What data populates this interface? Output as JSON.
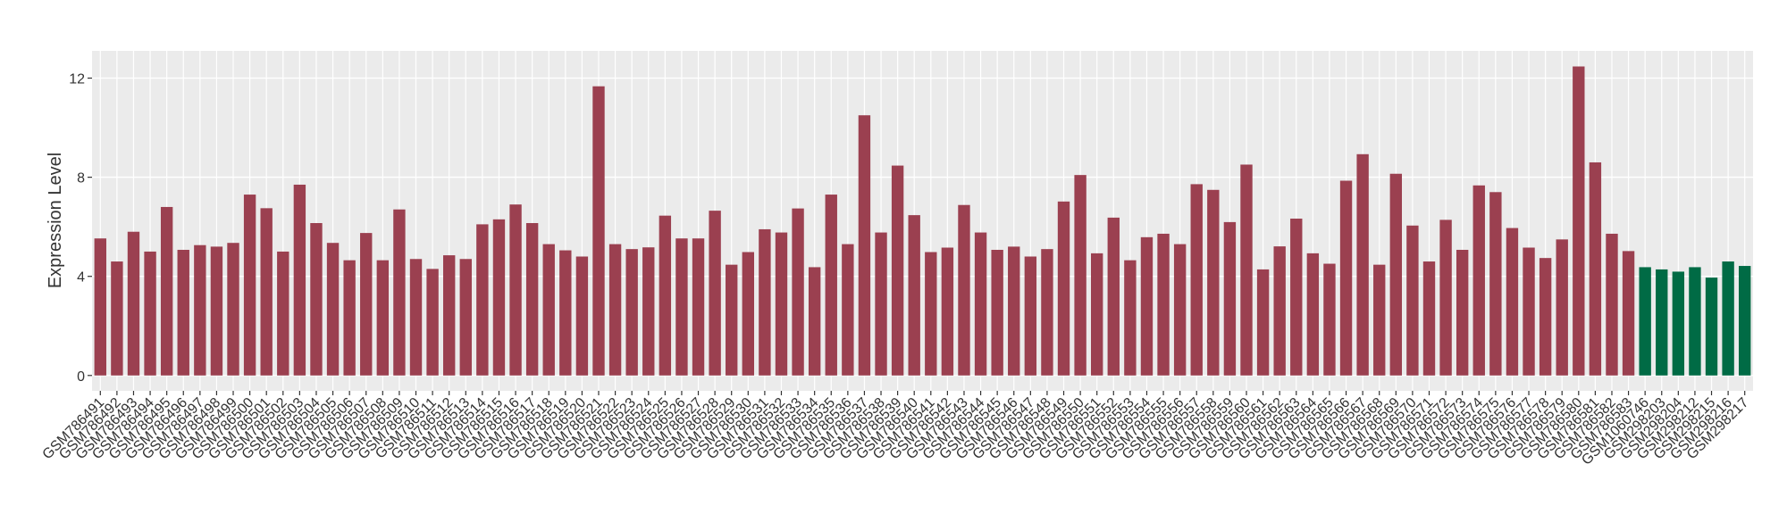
{
  "chart_data": {
    "type": "bar",
    "y_label": "Expression Level",
    "categories": [
      "GSM786491",
      "GSM786492",
      "GSM786493",
      "GSM786494",
      "GSM786495",
      "GSM786496",
      "GSM786497",
      "GSM786498",
      "GSM786499",
      "GSM786500",
      "GSM786501",
      "GSM786502",
      "GSM786503",
      "GSM786504",
      "GSM786505",
      "GSM786506",
      "GSM786507",
      "GSM786508",
      "GSM786509",
      "GSM786510",
      "GSM786511",
      "GSM786512",
      "GSM786513",
      "GSM786514",
      "GSM786515",
      "GSM786516",
      "GSM786517",
      "GSM786518",
      "GSM786519",
      "GSM786520",
      "GSM786521",
      "GSM786522",
      "GSM786523",
      "GSM786524",
      "GSM786525",
      "GSM786526",
      "GSM786527",
      "GSM786528",
      "GSM786529",
      "GSM786530",
      "GSM786531",
      "GSM786532",
      "GSM786533",
      "GSM786534",
      "GSM786535",
      "GSM786536",
      "GSM786537",
      "GSM786538",
      "GSM786539",
      "GSM786540",
      "GSM786541",
      "GSM786542",
      "GSM786543",
      "GSM786544",
      "GSM786545",
      "GSM786546",
      "GSM786547",
      "GSM786548",
      "GSM786549",
      "GSM786550",
      "GSM786551",
      "GSM786552",
      "GSM786553",
      "GSM786554",
      "GSM786555",
      "GSM786556",
      "GSM786557",
      "GSM786558",
      "GSM786559",
      "GSM786560",
      "GSM786561",
      "GSM786562",
      "GSM786563",
      "GSM786564",
      "GSM786565",
      "GSM786566",
      "GSM786567",
      "GSM786568",
      "GSM786569",
      "GSM786570",
      "GSM786571",
      "GSM786572",
      "GSM786573",
      "GSM786574",
      "GSM786575",
      "GSM786576",
      "GSM786577",
      "GSM786578",
      "GSM786579",
      "GSM786580",
      "GSM786581",
      "GSM786582",
      "GSM786583",
      "GSM1060746",
      "GSM298203",
      "GSM298204",
      "GSM298212",
      "GSM298215",
      "GSM298216",
      "GSM298217"
    ],
    "values": [
      5.53,
      4.6,
      5.8,
      5.0,
      6.8,
      5.07,
      5.26,
      5.2,
      5.35,
      7.3,
      6.75,
      5.0,
      7.7,
      6.15,
      5.35,
      4.65,
      5.75,
      4.65,
      6.7,
      4.7,
      4.3,
      4.85,
      4.7,
      6.1,
      6.3,
      6.9,
      6.15,
      5.3,
      5.05,
      4.8,
      11.67,
      5.3,
      5.1,
      5.17,
      6.45,
      5.53,
      5.53,
      6.65,
      4.47,
      4.98,
      5.9,
      5.77,
      6.74,
      4.37,
      7.3,
      5.3,
      10.5,
      5.77,
      8.47,
      6.47,
      4.98,
      5.16,
      6.88,
      5.77,
      5.07,
      5.2,
      4.8,
      5.1,
      7.02,
      8.09,
      4.93,
      6.37,
      4.65,
      5.58,
      5.72,
      5.3,
      7.72,
      7.49,
      6.19,
      8.51,
      4.28,
      5.21,
      6.33,
      4.93,
      4.51,
      7.86,
      8.93,
      4.47,
      8.14,
      6.05,
      4.6,
      6.28,
      5.07,
      7.67,
      7.4,
      5.95,
      5.16,
      4.74,
      5.49,
      12.47,
      8.6,
      5.72,
      5.02,
      4.37,
      4.28,
      4.19,
      4.37,
      3.95,
      4.6,
      4.42
    ],
    "colors": [
      "#9b4050",
      "#9b4050",
      "#9b4050",
      "#9b4050",
      "#9b4050",
      "#9b4050",
      "#9b4050",
      "#9b4050",
      "#9b4050",
      "#9b4050",
      "#9b4050",
      "#9b4050",
      "#9b4050",
      "#9b4050",
      "#9b4050",
      "#9b4050",
      "#9b4050",
      "#9b4050",
      "#9b4050",
      "#9b4050",
      "#9b4050",
      "#9b4050",
      "#9b4050",
      "#9b4050",
      "#9b4050",
      "#9b4050",
      "#9b4050",
      "#9b4050",
      "#9b4050",
      "#9b4050",
      "#9b4050",
      "#9b4050",
      "#9b4050",
      "#9b4050",
      "#9b4050",
      "#9b4050",
      "#9b4050",
      "#9b4050",
      "#9b4050",
      "#9b4050",
      "#9b4050",
      "#9b4050",
      "#9b4050",
      "#9b4050",
      "#9b4050",
      "#9b4050",
      "#9b4050",
      "#9b4050",
      "#9b4050",
      "#9b4050",
      "#9b4050",
      "#9b4050",
      "#9b4050",
      "#9b4050",
      "#9b4050",
      "#9b4050",
      "#9b4050",
      "#9b4050",
      "#9b4050",
      "#9b4050",
      "#9b4050",
      "#9b4050",
      "#9b4050",
      "#9b4050",
      "#9b4050",
      "#9b4050",
      "#9b4050",
      "#9b4050",
      "#9b4050",
      "#9b4050",
      "#9b4050",
      "#9b4050",
      "#9b4050",
      "#9b4050",
      "#9b4050",
      "#9b4050",
      "#9b4050",
      "#9b4050",
      "#9b4050",
      "#9b4050",
      "#9b4050",
      "#9b4050",
      "#9b4050",
      "#9b4050",
      "#9b4050",
      "#9b4050",
      "#9b4050",
      "#9b4050",
      "#9b4050",
      "#9b4050",
      "#9b4050",
      "#9b4050",
      "#9b4050",
      "#006b45",
      "#006b45",
      "#006b45",
      "#006b45",
      "#006b45",
      "#006b45",
      "#006b45"
    ],
    "ylim": [
      -0.62,
      13.1
    ],
    "yticks": [
      0,
      4,
      8,
      12
    ],
    "grid": true
  }
}
